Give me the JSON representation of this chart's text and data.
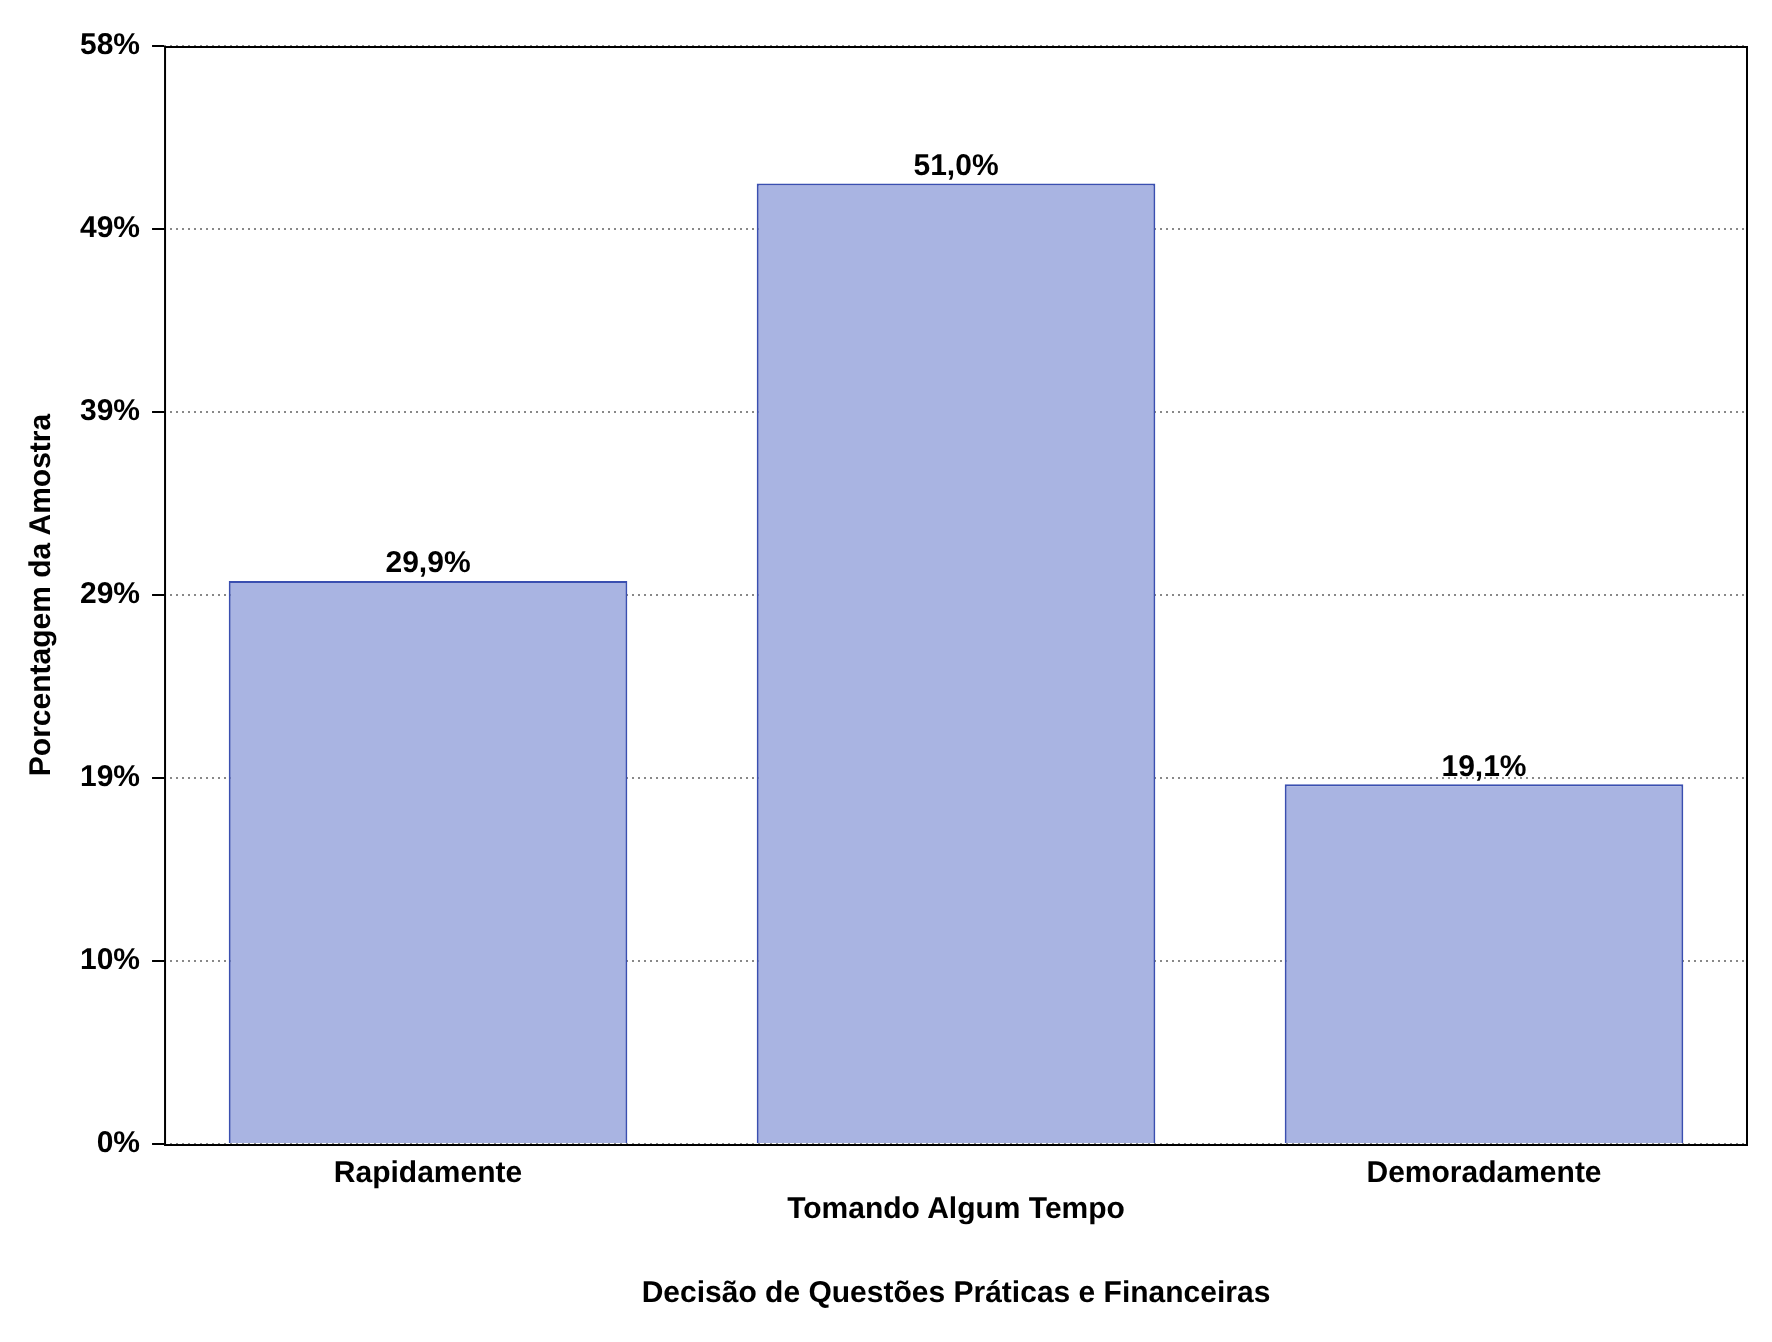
{
  "chart_data": {
    "type": "bar",
    "xlabel": "Decisão de Questões Práticas e Financeiras",
    "ylabel": "Porcentagem da Amostra",
    "categories": [
      "Rapidamente",
      "Tomando Algum Tempo",
      "Demoradamente"
    ],
    "values": [
      29.9,
      51.0,
      19.1
    ],
    "value_labels": [
      "29,9%",
      "51,0%",
      "19,1%"
    ],
    "color": "#a9b4e2",
    "ylim": [
      0,
      58.3
    ],
    "yticks": [
      {
        "value": 0,
        "label": "0%"
      },
      {
        "value": 9.72,
        "label": "10%"
      },
      {
        "value": 19.43,
        "label": "19%"
      },
      {
        "value": 29.15,
        "label": "29%"
      },
      {
        "value": 38.87,
        "label": "39%"
      },
      {
        "value": 48.58,
        "label": "49%"
      },
      {
        "value": 58.3,
        "label": "58%"
      }
    ],
    "grid": "y",
    "legend": false
  }
}
